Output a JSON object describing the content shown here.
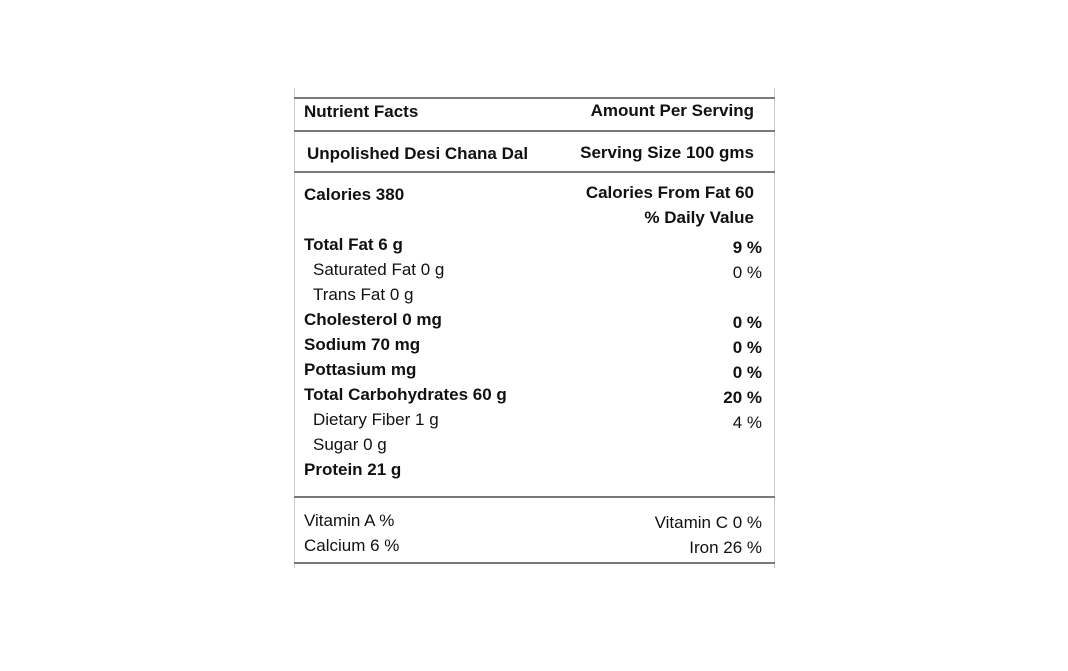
{
  "header": {
    "title": "Nutrient Facts",
    "amount_label": "Amount Per Serving"
  },
  "product": {
    "name": "Unpolished Desi Chana Dal",
    "serving_size": "Serving Size 100 gms"
  },
  "calories": {
    "calories": "Calories 380",
    "from_fat": "Calories From Fat 60",
    "daily_value_label": "% Daily Value"
  },
  "nutrients": [
    {
      "label": "Total Fat 6 g",
      "dv": "9 %"
    },
    {
      "label": "Saturated Fat 0 g",
      "dv": "0 %"
    },
    {
      "label": "Trans Fat 0 g",
      "dv": ""
    },
    {
      "label": "Cholesterol 0 mg",
      "dv": "0 %"
    },
    {
      "label": "Sodium 70 mg",
      "dv": "0 %"
    },
    {
      "label": "Pottasium mg",
      "dv": "0 %"
    },
    {
      "label": "Total Carbohydrates 60 g",
      "dv": "20 %"
    },
    {
      "label": "Dietary Fiber 1 g",
      "dv": "4 %"
    },
    {
      "label": "Sugar 0 g",
      "dv": ""
    },
    {
      "label": "Protein 21 g",
      "dv": ""
    }
  ],
  "vitamins": {
    "vitamin_a": "Vitamin A %",
    "vitamin_c": "Vitamin C 0 %",
    "calcium": "Calcium 6 %",
    "iron": "Iron 26 %"
  }
}
